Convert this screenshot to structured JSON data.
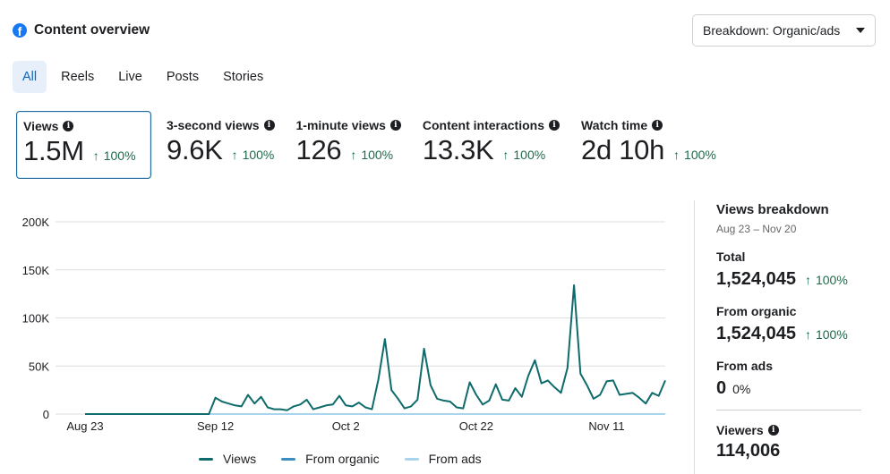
{
  "header": {
    "title": "Content overview",
    "logo_letter": "f"
  },
  "breakdown": {
    "label": "Breakdown: Organic/ads"
  },
  "tabs": [
    {
      "label": "All",
      "active": true
    },
    {
      "label": "Reels"
    },
    {
      "label": "Live"
    },
    {
      "label": "Posts"
    },
    {
      "label": "Stories"
    }
  ],
  "metrics": [
    {
      "label": "Views",
      "value": "1.5M",
      "delta": "100%",
      "active": true
    },
    {
      "label": "3-second views",
      "value": "9.6K",
      "delta": "100%"
    },
    {
      "label": "1-minute views",
      "value": "126",
      "delta": "100%"
    },
    {
      "label": "Content interactions",
      "value": "13.3K",
      "delta": "100%"
    },
    {
      "label": "Watch time",
      "value": "2d 10h",
      "delta": "100%"
    }
  ],
  "icons": {
    "info": "i",
    "arrow_up": "↑"
  },
  "colors": {
    "views": "#0f6b6b",
    "from_organic": "#3b8ec2",
    "from_ads": "#a9d4ee",
    "accent": "#0a66c2",
    "positive": "#0d6b43"
  },
  "chart_data": {
    "type": "line",
    "ylim": [
      0,
      200000
    ],
    "y_ticks": [
      "0",
      "50K",
      "100K",
      "150K",
      "200K"
    ],
    "x_tick_labels": [
      "Aug 23",
      "Sep 12",
      "Oct 2",
      "Oct 22",
      "Nov 11"
    ],
    "x_range": [
      "2024-08-23",
      "2024-11-20"
    ],
    "series": [
      {
        "name": "Views",
        "color": "#0f6b6b",
        "dates": [
          "2024-08-23",
          "2024-09-11",
          "2024-09-12",
          "2024-09-13",
          "2024-09-14",
          "2024-09-15",
          "2024-09-16",
          "2024-09-17",
          "2024-09-18",
          "2024-09-19",
          "2024-09-20",
          "2024-09-21",
          "2024-09-22",
          "2024-09-23",
          "2024-09-24",
          "2024-09-25",
          "2024-09-26",
          "2024-09-27",
          "2024-09-28",
          "2024-09-29",
          "2024-09-30",
          "2024-10-01",
          "2024-10-02",
          "2024-10-03",
          "2024-10-04",
          "2024-10-05",
          "2024-10-06",
          "2024-10-07",
          "2024-10-08",
          "2024-10-09",
          "2024-10-10",
          "2024-10-11",
          "2024-10-12",
          "2024-10-13",
          "2024-10-14",
          "2024-10-15",
          "2024-10-16",
          "2024-10-17",
          "2024-10-18",
          "2024-10-19",
          "2024-10-20",
          "2024-10-21",
          "2024-10-22",
          "2024-10-23",
          "2024-10-24",
          "2024-10-25",
          "2024-10-26",
          "2024-10-27",
          "2024-10-28",
          "2024-10-29",
          "2024-10-30",
          "2024-10-31",
          "2024-11-01",
          "2024-11-02",
          "2024-11-03",
          "2024-11-04",
          "2024-11-05",
          "2024-11-06",
          "2024-11-07",
          "2024-11-08",
          "2024-11-09",
          "2024-11-10",
          "2024-11-11",
          "2024-11-12",
          "2024-11-13",
          "2024-11-14",
          "2024-11-15",
          "2024-11-16",
          "2024-11-17",
          "2024-11-18",
          "2024-11-19",
          "2024-11-20"
        ],
        "values": [
          0,
          0,
          17000,
          13000,
          11000,
          9000,
          8000,
          20000,
          11000,
          18000,
          7000,
          5000,
          5000,
          4000,
          8000,
          10000,
          15000,
          5000,
          7000,
          9000,
          10000,
          19000,
          9000,
          8000,
          12000,
          7000,
          5000,
          36000,
          78000,
          25000,
          16000,
          6000,
          8000,
          15000,
          68000,
          30000,
          16000,
          14000,
          13000,
          7000,
          6000,
          33000,
          20000,
          10000,
          14000,
          31000,
          15000,
          14000,
          27000,
          18000,
          40000,
          56000,
          32000,
          35000,
          28000,
          22000,
          48000,
          134000,
          42000,
          30000,
          16000,
          20000,
          34000,
          35000,
          20000,
          21000,
          22000,
          17000,
          11000,
          22000,
          19000,
          35000
        ]
      },
      {
        "name": "From organic",
        "color": "#3b8ec2"
      },
      {
        "name": "From ads",
        "color": "#a9d4ee"
      }
    ]
  },
  "views_breakdown": {
    "title": "Views breakdown",
    "range": "Aug 23 – Nov 20",
    "items": [
      {
        "label": "Total",
        "value": "1,524,045",
        "delta": "100%"
      },
      {
        "label": "From organic",
        "value": "1,524,045",
        "delta": "100%"
      },
      {
        "label": "From ads",
        "value": "0",
        "delta": "0%"
      },
      {
        "label": "Viewers",
        "value": "114,006"
      }
    ]
  }
}
